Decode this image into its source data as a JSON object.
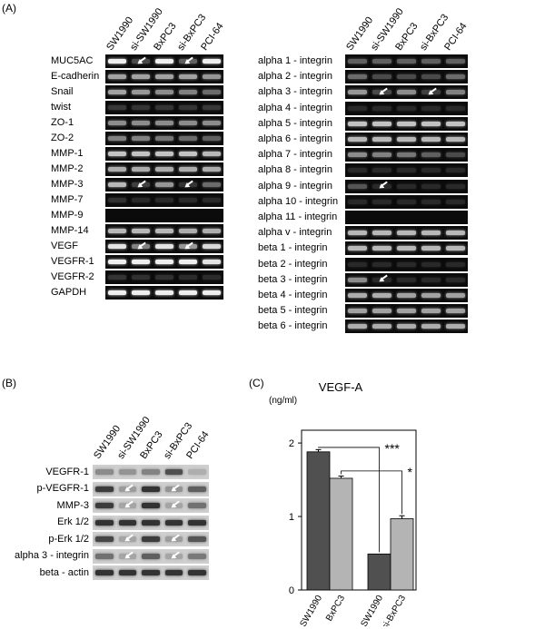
{
  "panel_a": {
    "label": "(A)",
    "lanes": [
      "SW1990",
      "si-SW1990",
      "BxPC3",
      "si-BxPC3",
      "PCI-64"
    ],
    "left_rows": [
      {
        "name": "MUC5AC",
        "i": [
          0.95,
          0.2,
          0.95,
          0.3,
          0.95
        ],
        "arrows": [
          1,
          3
        ]
      },
      {
        "name": "E-cadherin",
        "i": [
          0.6,
          0.6,
          0.6,
          0.6,
          0.55
        ],
        "arrows": []
      },
      {
        "name": "Snail",
        "i": [
          0.6,
          0.55,
          0.5,
          0.45,
          0.35
        ],
        "arrows": []
      },
      {
        "name": "twist",
        "i": [
          0.12,
          0.1,
          0.1,
          0.1,
          0.12
        ],
        "arrows": []
      },
      {
        "name": "ZO-1",
        "i": [
          0.5,
          0.5,
          0.5,
          0.5,
          0.5
        ],
        "arrows": []
      },
      {
        "name": "ZO-2",
        "i": [
          0.45,
          0.45,
          0.4,
          0.35,
          0.3
        ],
        "arrows": []
      },
      {
        "name": "MMP-1",
        "i": [
          0.75,
          0.75,
          0.75,
          0.75,
          0.7
        ],
        "arrows": []
      },
      {
        "name": "MMP-2",
        "i": [
          0.65,
          0.65,
          0.65,
          0.65,
          0.65
        ],
        "arrows": []
      },
      {
        "name": "MMP-3",
        "i": [
          0.7,
          0.15,
          0.55,
          0.1,
          0.35
        ],
        "arrows": [
          1,
          3
        ]
      },
      {
        "name": "MMP-7",
        "i": [
          0.08,
          0.05,
          0.05,
          0.05,
          0.05
        ],
        "arrows": []
      },
      {
        "name": "MMP-9",
        "i": [
          0.0,
          0.0,
          0.0,
          0.0,
          0.0
        ],
        "arrows": []
      },
      {
        "name": "MMP-14",
        "i": [
          0.7,
          0.7,
          0.7,
          0.65,
          0.65
        ],
        "arrows": []
      },
      {
        "name": "VEGF",
        "i": [
          0.9,
          0.45,
          0.9,
          0.55,
          0.85
        ],
        "arrows": [
          1,
          3
        ]
      },
      {
        "name": "VEGFR-1",
        "i": [
          0.95,
          0.95,
          0.95,
          0.95,
          0.9
        ],
        "arrows": []
      },
      {
        "name": "VEGFR-2",
        "i": [
          0.1,
          0.08,
          0.08,
          0.06,
          0.06
        ],
        "arrows": []
      },
      {
        "name": "GAPDH",
        "i": [
          0.95,
          0.95,
          0.95,
          0.95,
          0.95
        ],
        "arrows": []
      }
    ],
    "right_rows": [
      {
        "name": "alpha 1 - integrin",
        "i": [
          0.3,
          0.3,
          0.3,
          0.3,
          0.3
        ],
        "arrows": []
      },
      {
        "name": "alpha 2 - integrin",
        "i": [
          0.35,
          0.2,
          0.2,
          0.2,
          0.35
        ],
        "arrows": []
      },
      {
        "name": "alpha 3 - integrin",
        "i": [
          0.55,
          0.2,
          0.5,
          0.15,
          0.45
        ],
        "arrows": [
          1,
          3
        ]
      },
      {
        "name": "alpha 4 - integrin",
        "i": [
          0.05,
          0.05,
          0.05,
          0.05,
          0.05
        ],
        "arrows": []
      },
      {
        "name": "alpha 5 - integrin",
        "i": [
          0.75,
          0.75,
          0.75,
          0.75,
          0.75
        ],
        "arrows": []
      },
      {
        "name": "alpha 6 - integrin",
        "i": [
          0.7,
          0.7,
          0.7,
          0.7,
          0.7
        ],
        "arrows": []
      },
      {
        "name": "alpha 7 - integrin",
        "i": [
          0.5,
          0.45,
          0.4,
          0.3,
          0.2
        ],
        "arrows": []
      },
      {
        "name": "alpha 8 - integrin",
        "i": [
          0.05,
          0.05,
          0.05,
          0.05,
          0.05
        ],
        "arrows": []
      },
      {
        "name": "alpha 9 - integrin",
        "i": [
          0.25,
          0.05,
          0.05,
          0.05,
          0.05
        ],
        "arrows": [
          1
        ]
      },
      {
        "name": "alpha 10 - integrin",
        "i": [
          0.05,
          0.05,
          0.05,
          0.05,
          0.05
        ],
        "arrows": []
      },
      {
        "name": "alpha 11 - integrin",
        "i": [
          0.0,
          0.0,
          0.0,
          0.0,
          0.0
        ],
        "arrows": []
      },
      {
        "name": "alpha v - integrin",
        "i": [
          0.7,
          0.7,
          0.7,
          0.7,
          0.7
        ],
        "arrows": []
      },
      {
        "name": "beta 1 - integrin",
        "i": [
          0.7,
          0.7,
          0.7,
          0.7,
          0.7
        ],
        "arrows": []
      },
      {
        "name": "beta 2 - integrin",
        "i": [
          0.05,
          0.05,
          0.05,
          0.05,
          0.05
        ],
        "arrows": []
      },
      {
        "name": "beta 3 - integrin",
        "i": [
          0.5,
          0.05,
          0.05,
          0.05,
          0.05
        ],
        "arrows": [
          1
        ]
      },
      {
        "name": "beta 4 - integrin",
        "i": [
          0.65,
          0.65,
          0.6,
          0.6,
          0.6
        ],
        "arrows": []
      },
      {
        "name": "beta 5 - integrin",
        "i": [
          0.6,
          0.6,
          0.6,
          0.6,
          0.6
        ],
        "arrows": []
      },
      {
        "name": "beta 6 - integrin",
        "i": [
          0.65,
          0.65,
          0.65,
          0.65,
          0.65
        ],
        "arrows": []
      }
    ]
  },
  "panel_b": {
    "label": "(B)",
    "lanes": [
      "SW1990",
      "si-SW1990",
      "BxPC3",
      "si-BxPC3",
      "PCI-64"
    ],
    "rows": [
      {
        "name": "VEGFR-1",
        "i": [
          0.35,
          0.3,
          0.4,
          0.7,
          0.15
        ],
        "arrows": []
      },
      {
        "name": "p-VEGFR-1",
        "i": [
          0.8,
          0.25,
          0.85,
          0.3,
          0.6
        ],
        "arrows": [
          1,
          3
        ]
      },
      {
        "name": "MMP-3",
        "i": [
          0.8,
          0.2,
          0.85,
          0.2,
          0.5
        ],
        "arrows": [
          1,
          3
        ]
      },
      {
        "name": "Erk 1/2",
        "i": [
          0.85,
          0.85,
          0.85,
          0.85,
          0.85
        ],
        "arrows": []
      },
      {
        "name": "p-Erk 1/2",
        "i": [
          0.75,
          0.2,
          0.8,
          0.25,
          0.65
        ],
        "arrows": [
          1,
          3
        ]
      },
      {
        "name": "alpha 3 - integrin",
        "i": [
          0.5,
          0.2,
          0.6,
          0.2,
          0.45
        ],
        "arrows": [
          1,
          3
        ]
      },
      {
        "name": "beta - actin",
        "i": [
          0.85,
          0.85,
          0.85,
          0.85,
          0.85
        ],
        "arrows": []
      }
    ]
  },
  "chart_data": {
    "type": "bar",
    "panel_label": "(C)",
    "title": "VEGF-A",
    "ylabel": "(ng/ml)",
    "categories": [
      "SW1990",
      "BxPC3",
      "si-SW1990",
      "si-BxPC3"
    ],
    "values": [
      1.88,
      1.52,
      0.49,
      0.97
    ],
    "errors": [
      0.03,
      0.03,
      0.0,
      0.04
    ],
    "colors": [
      "#505050",
      "#b4b4b4",
      "#505050",
      "#b4b4b4"
    ],
    "ylim": [
      0,
      2.1
    ],
    "yticks": [
      0,
      1,
      2
    ],
    "significance": [
      {
        "from": 0,
        "to": 2,
        "label": "***"
      },
      {
        "from": 1,
        "to": 3,
        "label": "*"
      }
    ]
  }
}
